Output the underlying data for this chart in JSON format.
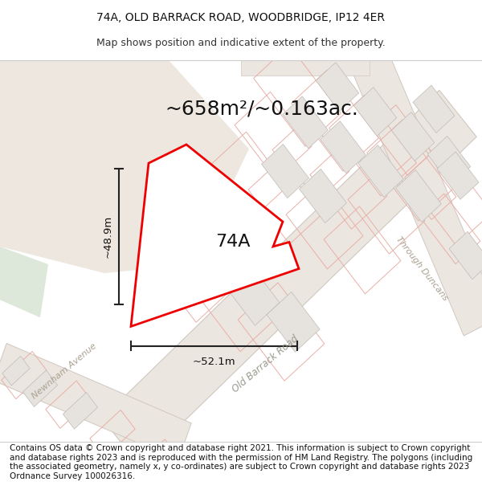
{
  "title_line1": "74A, OLD BARRACK ROAD, WOODBRIDGE, IP12 4ER",
  "title_line2": "Map shows position and indicative extent of the property.",
  "area_label": "~658m²/~0.163ac.",
  "property_label": "74A",
  "dim_width": "~52.1m",
  "dim_height": "~48.9m",
  "road_label1": "Old Barrack Road",
  "road_label2": "Newnham Avenue",
  "road_label3": "Through Duncans",
  "footer_text": "Contains OS data © Crown copyright and database right 2021. This information is subject to Crown copyright and database rights 2023 and is reproduced with the permission of HM Land Registry. The polygons (including the associated geometry, namely x, y co-ordinates) are subject to Crown copyright and database rights 2023 Ordnance Survey 100026316.",
  "bg_map_color": "#f7f3ef",
  "road_fill": "#f0ece6",
  "block_fill": "#e8e4e0",
  "block_edge": "#c8c4c0",
  "cadastral_edge": "#e8a8a0",
  "property_fill": "#ffffff",
  "property_edge": "#ff0000",
  "beige_area": "#ede5db",
  "greenish_area": "#e8f0e8",
  "title_fontsize": 10,
  "subtitle_fontsize": 9,
  "area_fontsize": 18,
  "prop_label_fontsize": 16,
  "road_label_fontsize": 8,
  "footer_fontsize": 7.5
}
